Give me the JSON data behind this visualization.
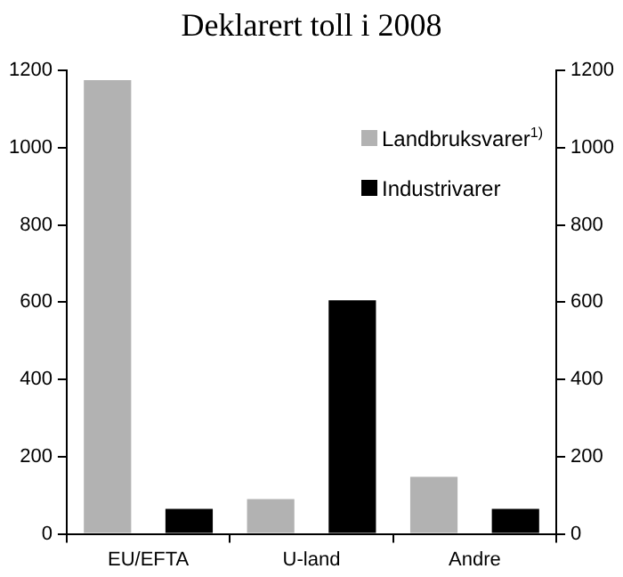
{
  "chart_data": {
    "type": "bar",
    "title": "Deklarert toll i 2008",
    "categories": [
      "EU/EFTA",
      "U-land",
      "Andre"
    ],
    "series": [
      {
        "name": "Landbruksvarer$^{1)}$",
        "color": "#b2b2b2",
        "values": [
          1175,
          90,
          148
        ]
      },
      {
        "name": "Industrivarer",
        "color": "#000000",
        "values": [
          65,
          605,
          65
        ]
      }
    ],
    "ylim": [
      0,
      1200
    ],
    "yticks": [
      0,
      200,
      400,
      600,
      800,
      1000,
      1200
    ],
    "y2lim": [
      0,
      1200
    ],
    "y2ticks": [
      0,
      200,
      400,
      600,
      800,
      1000,
      1200
    ],
    "grid": false,
    "legend": "top right"
  }
}
